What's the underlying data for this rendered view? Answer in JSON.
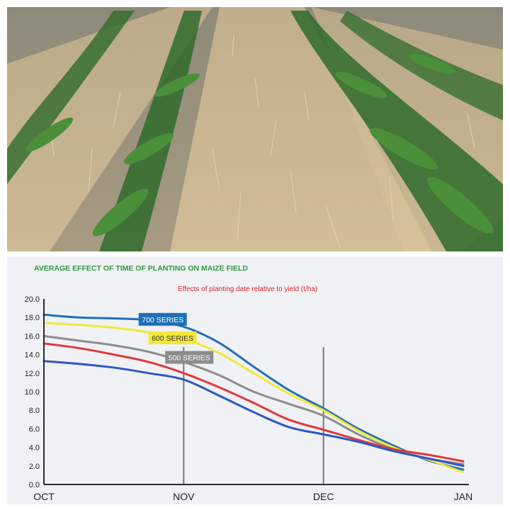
{
  "photo": {
    "subject": "young maize rows growing through standing crop residue stubble"
  },
  "chart_data": {
    "type": "line",
    "title": "AVERAGE EFFECT OF TIME OF PLANTING ON MAIZE FIELD",
    "subtitle": "Effects of planting date relative to yield (t/ha)",
    "xlabel": "",
    "ylabel": "",
    "categories": [
      "OCT",
      "NOV",
      "DEC",
      "JAN"
    ],
    "x_ticks": [
      0,
      1,
      2,
      3
    ],
    "ylim": [
      0,
      20
    ],
    "y_ticks": [
      "0.0",
      "2.0",
      "4.0",
      "6.0",
      "8.0",
      "10.0",
      "12.0",
      "14.0",
      "16.0",
      "18.0",
      "20.0"
    ],
    "grid": false,
    "vertical_reference_lines": [
      1,
      2
    ],
    "series": [
      {
        "name": "700 SERIES",
        "color": "#1f6fb8",
        "x": [
          0,
          0.25,
          0.5,
          0.75,
          1.0,
          1.25,
          1.5,
          1.75,
          2.0,
          2.25,
          2.5,
          2.75,
          3.0
        ],
        "y": [
          18.3,
          18.0,
          17.9,
          17.7,
          17.0,
          15.3,
          12.7,
          10.2,
          8.2,
          6.0,
          4.2,
          2.6,
          1.6
        ]
      },
      {
        "name": "600 SERIES",
        "color": "#f2e83a",
        "x": [
          0,
          0.25,
          0.5,
          0.75,
          1.0,
          1.25,
          1.5,
          1.75,
          2.0,
          2.25,
          2.5,
          2.75,
          3.0
        ],
        "y": [
          17.4,
          17.2,
          16.9,
          16.4,
          15.7,
          14.2,
          12.0,
          9.8,
          8.0,
          5.8,
          4.0,
          2.7,
          1.3
        ]
      },
      {
        "name": "500 SERIES",
        "color": "#8c8c8c",
        "x": [
          0,
          0.25,
          0.5,
          0.75,
          1.0,
          1.25,
          1.5,
          1.75,
          2.0,
          2.25,
          2.5,
          2.75,
          3.0
        ],
        "y": [
          16.0,
          15.5,
          15.0,
          14.3,
          13.2,
          11.8,
          10.0,
          8.7,
          7.4,
          5.4,
          3.8,
          2.8,
          2.2
        ]
      },
      {
        "name": "",
        "color": "#e0383b",
        "x": [
          0,
          0.25,
          0.5,
          0.75,
          1.0,
          1.25,
          1.5,
          1.75,
          2.0,
          2.25,
          2.5,
          2.75,
          3.0
        ],
        "y": [
          15.2,
          14.7,
          14.0,
          13.2,
          12.0,
          10.5,
          8.8,
          7.0,
          5.9,
          4.8,
          3.8,
          3.2,
          2.5
        ]
      },
      {
        "name": "",
        "color": "#2b59c3",
        "x": [
          0,
          0.25,
          0.5,
          0.75,
          1.0,
          1.25,
          1.5,
          1.75,
          2.0,
          2.25,
          2.5,
          2.75,
          3.0
        ],
        "y": [
          13.3,
          13.0,
          12.6,
          12.0,
          11.3,
          9.6,
          7.8,
          6.2,
          5.4,
          4.6,
          3.6,
          2.8,
          2.0
        ]
      }
    ],
    "labels": [
      {
        "text": "700 SERIES",
        "series": "700 SERIES",
        "bg": "#1f6fb8",
        "fg": "#ffffff",
        "anchor_x": 0.85,
        "anchor_y": 17.8
      },
      {
        "text": "600 SERIES",
        "series": "600 SERIES",
        "bg": "#f2e83a",
        "fg": "#333333",
        "anchor_x": 0.92,
        "anchor_y": 15.8
      },
      {
        "text": "500 SERIES",
        "series": "500 SERIES",
        "bg": "#8c8c8c",
        "fg": "#ffffff",
        "anchor_x": 1.04,
        "anchor_y": 13.7
      }
    ],
    "colors": {
      "title": "#2e9a3e",
      "subtitle": "#d8262b",
      "axis": "#2b2b2b",
      "reference_line": "#777777",
      "panel_bg": "#f0f1f4"
    }
  }
}
